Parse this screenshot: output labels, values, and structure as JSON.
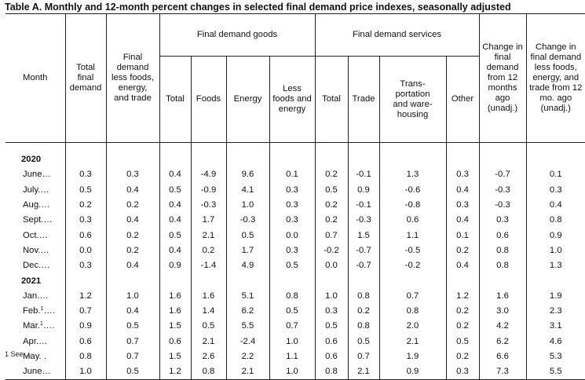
{
  "title": "Table A. Monthly and 12-month percent changes in selected final demand price indexes, seasonally adjusted",
  "header": {
    "month": "Month",
    "total_final_demand": "Total final demand",
    "fd_less": "Final demand less foods, energy, and trade",
    "goods_group": "Final demand goods",
    "goods_total": "Total",
    "goods_foods": "Foods",
    "goods_energy": "Energy",
    "goods_less": "Less foods and energy",
    "services_group": "Final demand services",
    "services_total": "Total",
    "services_trade": "Trade",
    "services_transport": "Trans- portation and ware- housing",
    "services_other": "Other",
    "change_12": "Change in final demand from 12 months ago (unadj.)",
    "change_less_12": "Change in final demand less foods, energy, and trade from 12 mo. ago (unadj.)"
  },
  "years": [
    {
      "year": "2020",
      "rows": [
        {
          "month": "June…",
          "sup": "",
          "values": [
            "0.3",
            "0.3",
            "0.4",
            "-4.9",
            "9.6",
            "0.1",
            "0.2",
            "-0.1",
            "1.3",
            "0.3",
            "-0.7",
            "0.1"
          ]
        },
        {
          "month": "July.…",
          "sup": "",
          "values": [
            "0.5",
            "0.4",
            "0.5",
            "-0.9",
            "4.1",
            "0.3",
            "0.5",
            "0.9",
            "-0.6",
            "0.4",
            "-0.3",
            "0.3"
          ]
        },
        {
          "month": "Aug.…",
          "sup": "",
          "values": [
            "0.2",
            "0.2",
            "0.4",
            "-0.3",
            "1.0",
            "0.3",
            "0.2",
            "-0.1",
            "-0.8",
            "0.3",
            "-0.3",
            "0.4"
          ]
        },
        {
          "month": "Sept.…",
          "sup": "",
          "values": [
            "0.3",
            "0.4",
            "0.4",
            "1.7",
            "-0.3",
            "0.3",
            "0.2",
            "-0.3",
            "0.6",
            "0.4",
            "0.3",
            "0.8"
          ]
        },
        {
          "month": "Oct.…",
          "sup": "",
          "values": [
            "0.6",
            "0.2",
            "0.5",
            "2.1",
            "0.5",
            "0.0",
            "0.7",
            "1.5",
            "1.1",
            "0.1",
            "0.6",
            "0.9"
          ]
        },
        {
          "month": "Nov.…",
          "sup": "",
          "values": [
            "0.0",
            "0.2",
            "0.4",
            "0.2",
            "1.7",
            "0.3",
            "-0.2",
            "-0.7",
            "-0.5",
            "0.2",
            "0.8",
            "1.0"
          ]
        },
        {
          "month": "Dec.…",
          "sup": "",
          "values": [
            "0.3",
            "0.4",
            "0.9",
            "-1.4",
            "4.9",
            "0.5",
            "0.0",
            "-0.7",
            "-0.2",
            "0.4",
            "0.8",
            "1.3"
          ]
        }
      ]
    },
    {
      "year": "2021",
      "rows": [
        {
          "month": "Jan.…",
          "sup": "",
          "values": [
            "1.2",
            "1.0",
            "1.6",
            "1.6",
            "5.1",
            "0.8",
            "1.0",
            "0.8",
            "0.7",
            "1.2",
            "1.6",
            "1.9"
          ]
        },
        {
          "month": "Feb.",
          "sup": "1",
          "values": [
            "0.7",
            "0.4",
            "1.6",
            "1.4",
            "6.2",
            "0.5",
            "0.3",
            "0.2",
            "0.8",
            "0.2",
            "3.0",
            "2.3"
          ]
        },
        {
          "month": "Mar.",
          "sup": "1",
          "values": [
            "0.9",
            "0.5",
            "1.5",
            "0.5",
            "5.5",
            "0.7",
            "0.5",
            "0.8",
            "2.0",
            "0.2",
            "4.2",
            "3.1"
          ]
        },
        {
          "month": "Apr.…",
          "sup": "",
          "values": [
            "0.6",
            "0.7",
            "0.6",
            "2.1",
            "-2.4",
            "1.0",
            "0.6",
            "0.5",
            "2.1",
            "0.5",
            "6.2",
            "4.6"
          ]
        },
        {
          "month": "May. .",
          "sup": "",
          "values": [
            "0.8",
            "0.7",
            "1.5",
            "2.6",
            "2.2",
            "1.1",
            "0.6",
            "0.7",
            "1.9",
            "0.2",
            "6.6",
            "5.3"
          ]
        },
        {
          "month": "June…",
          "sup": "",
          "values": [
            "1.0",
            "0.5",
            "1.2",
            "0.8",
            "2.1",
            "1.0",
            "0.8",
            "2.1",
            "0.9",
            "0.3",
            "7.3",
            "5.5"
          ]
        }
      ]
    }
  ],
  "footnote": "1 See ..."
}
